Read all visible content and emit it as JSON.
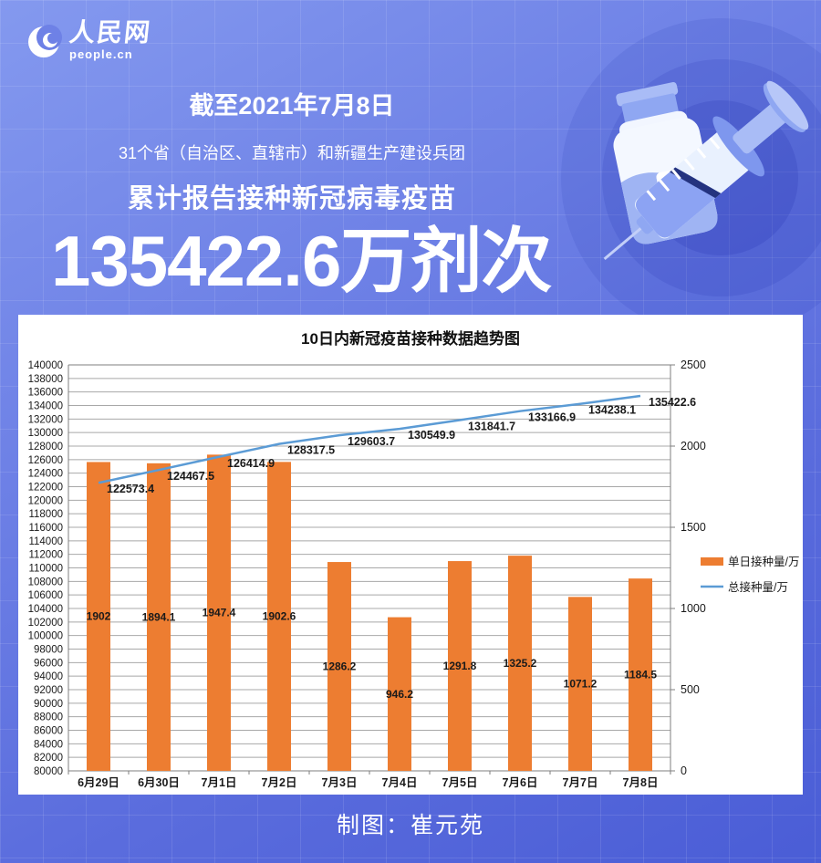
{
  "brand": {
    "logo_cn": "人民网",
    "logo_en": "people.cn"
  },
  "header": {
    "date_line": "截至2021年7月8日",
    "scope_line": "31个省（自治区、直辖市）和新疆生产建设兵团",
    "subject_line": "累计报告接种新冠病毒疫苗",
    "headline_number": "135422.6万剂次"
  },
  "footer": {
    "credit": "制图：崔元苑"
  },
  "colors": {
    "bar": "#ED7D31",
    "line": "#5B9BD5",
    "grid": "#a8a8a8",
    "axis": "#7f7f7f",
    "label_text": "#1a1a1a",
    "panel_bg": "#ffffff",
    "poster_text": "#ffffff"
  },
  "chart_data": {
    "type": "bar",
    "combo": "bar+line",
    "title": "10日内新冠疫苗接种数据趋势图",
    "categories": [
      "6月29日",
      "6月30日",
      "7月1日",
      "7月2日",
      "7月3日",
      "7月4日",
      "7月5日",
      "7月6日",
      "7月7日",
      "7月8日"
    ],
    "series": [
      {
        "name": "单日接种量/万",
        "type": "bar",
        "axis": "right",
        "values": [
          1902,
          1894.1,
          1947.4,
          1902.6,
          1286.2,
          946.2,
          1291.8,
          1325.2,
          1071.2,
          1184.5
        ],
        "labels": [
          "1902",
          "1894.1",
          "1947.4",
          "1902.6",
          "1286.2",
          "946.2",
          "1291.8",
          "1325.2",
          "1071.2",
          "1184.5"
        ]
      },
      {
        "name": "总接种量/万",
        "type": "line",
        "axis": "left",
        "values": [
          122573.4,
          124467.5,
          126414.9,
          128317.5,
          129603.7,
          130549.9,
          131841.7,
          133166.9,
          134238.1,
          135422.6
        ],
        "labels": [
          "122573.4",
          "124467.5",
          "126414.9",
          "128317.5",
          "129603.7",
          "130549.9",
          "131841.7",
          "133166.9",
          "134238.1",
          "135422.6"
        ]
      }
    ],
    "left_axis": {
      "min": 80000,
      "max": 140000,
      "step": 2000
    },
    "right_axis": {
      "min": 0,
      "max": 2500,
      "step": 500
    },
    "grid": "horizontal",
    "legend_position": "right"
  }
}
